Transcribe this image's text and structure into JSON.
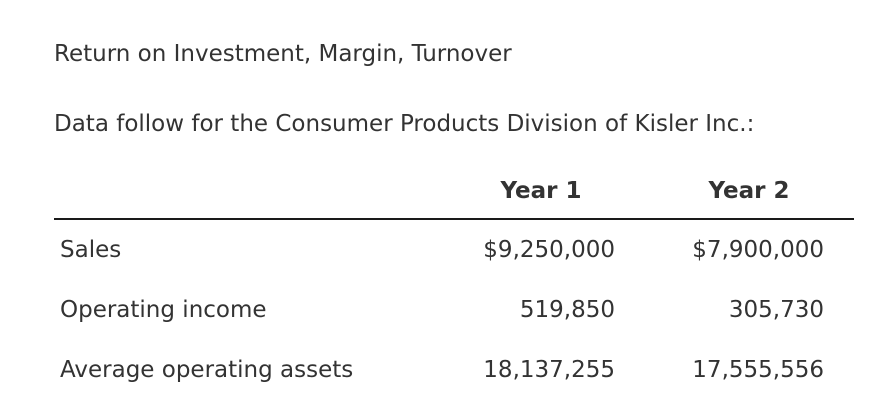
{
  "heading": "Return on Investment, Margin, Turnover",
  "intro": "Data follow for the Consumer Products Division of Kisler Inc.:",
  "table": {
    "columns": [
      "Year 1",
      "Year 2"
    ],
    "rows": [
      {
        "label": "Sales",
        "year1": "$9,250,000",
        "year2": "$7,900,000"
      },
      {
        "label": "Operating income",
        "year1": "519,850",
        "year2": "305,730"
      },
      {
        "label": "Average operating assets",
        "year1": "18,137,255",
        "year2": "17,555,556"
      }
    ]
  }
}
